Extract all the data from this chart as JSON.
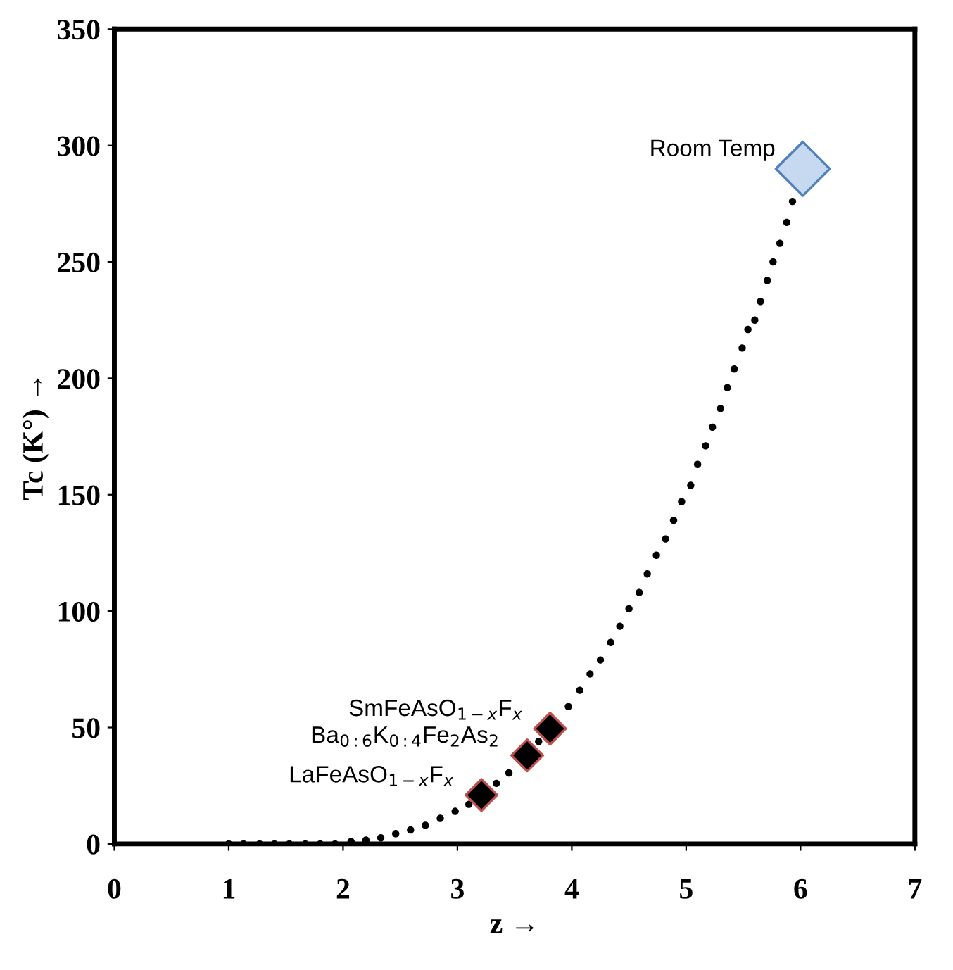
{
  "chart_data": {
    "type": "scatter",
    "xlabel": "z →",
    "ylabel": "Tc (K°) →",
    "xlim": [
      0,
      7
    ],
    "ylim": [
      0,
      350
    ],
    "xticks": [
      0,
      1,
      2,
      3,
      4,
      5,
      6,
      7
    ],
    "yticks": [
      0,
      50,
      100,
      150,
      200,
      250,
      300,
      350
    ],
    "grid": false,
    "legend": false,
    "series": [
      {
        "marker": "circle",
        "color": "#000000",
        "x": [
          1.0,
          1.13,
          1.27,
          1.4,
          1.53,
          1.67,
          1.8,
          1.93,
          2.07,
          2.2,
          2.33,
          2.46,
          2.59,
          2.72,
          2.85,
          2.98,
          3.1,
          3.34,
          3.45,
          3.71,
          3.97,
          4.07,
          4.16,
          4.25,
          4.34,
          4.42,
          4.5,
          4.59,
          4.66,
          4.74,
          4.82,
          4.89,
          4.96,
          5.04,
          5.1,
          5.17,
          5.23,
          5.3,
          5.36,
          5.42,
          5.49,
          5.54,
          5.6,
          5.65,
          5.71,
          5.76,
          5.82,
          5.88,
          5.93
        ],
        "values": [
          0,
          0,
          0,
          0,
          0,
          0,
          0,
          0,
          1,
          1.6,
          2.6,
          4.4,
          6,
          8,
          11,
          14,
          17,
          26,
          30.5,
          44,
          59,
          66,
          73,
          79,
          86.5,
          93.5,
          101,
          108,
          116,
          124,
          131,
          139,
          147,
          154,
          163,
          171,
          179,
          187,
          196,
          204,
          213,
          221,
          225,
          233,
          242,
          250,
          258,
          267,
          276
        ]
      },
      {
        "marker": "diamond",
        "color": "#000000",
        "x": [
          3.21,
          3.61,
          3.81
        ],
        "values": [
          21,
          38,
          49.5
        ]
      },
      {
        "marker": "diamond",
        "color": "#c6d9f1",
        "x": [
          6.02
        ],
        "values": [
          290
        ]
      }
    ],
    "annotations": [
      {
        "text": "LaFeAsO$_{1−x}$F$_{x}$",
        "x": 3.21,
        "y": 21
      },
      {
        "text": "Ba$_{0:6}$K$_{0:4}$Fe$_{2}$As$_{2}$",
        "x": 3.61,
        "y": 38
      },
      {
        "text": "SmFeAsO$_{1−x}$F$_{x}$",
        "x": 3.81,
        "y": 49.5
      },
      {
        "text": "Room Temp",
        "x": 6.02,
        "y": 290
      }
    ]
  }
}
